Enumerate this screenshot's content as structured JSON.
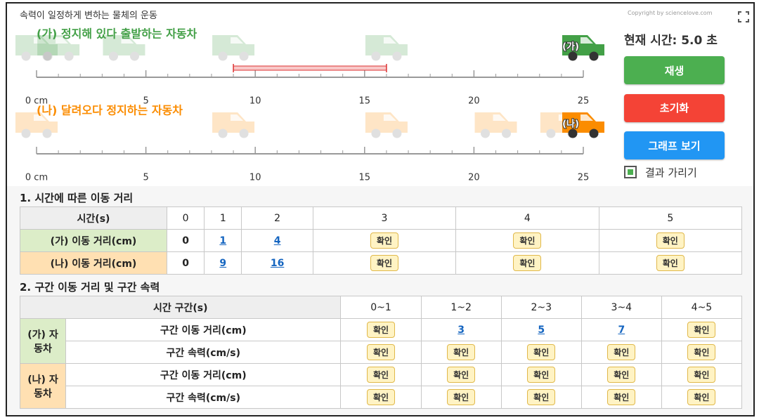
{
  "header": {
    "title": "속력이 일정하게 변하는 물체의 운동",
    "copyright": "Copyright by sciencelove.com"
  },
  "sim": {
    "xlim": [
      0,
      25
    ],
    "ticks": [
      {
        "value": 0,
        "label": "0 cm"
      },
      5,
      10,
      15,
      20,
      25
    ],
    "highlight": [
      9,
      16
    ],
    "track_a": {
      "label": "(가) 정지해 있다 출발하는 자동차",
      "car_label": "(가)",
      "positions": [
        0,
        1,
        4,
        9,
        16,
        25
      ],
      "color": "#43a047"
    },
    "track_b": {
      "label": "(나) 달려오다 정지하는 자동차",
      "car_label": "(나)",
      "positions": [
        0,
        9,
        16,
        21,
        24,
        25
      ],
      "color": "#fb8c00"
    }
  },
  "panel": {
    "status": "현재 시간: 5.0 초",
    "buttons": [
      {
        "label": "재생",
        "color": "#4caf50"
      },
      {
        "label": "초기화",
        "color": "#f44336"
      },
      {
        "label": "그래프 보기",
        "color": "#2196f3"
      }
    ],
    "checkbox": "결과 가리기"
  },
  "table1": {
    "title": "1. 시간에 따른 이동 거리",
    "header": [
      "시간(s)",
      "0",
      "1",
      "2",
      "3",
      "4",
      "5"
    ],
    "rows": [
      [
        "(가) 이동 거리(cm)",
        "0",
        "1",
        "4",
        "확인",
        "확인",
        "확인"
      ],
      [
        "(나) 이동 거리(cm)",
        "0",
        "9",
        "16",
        "확인",
        "확인",
        "확인"
      ]
    ]
  },
  "table2": {
    "title": "2. 구간 이동 거리 및 구간 속력",
    "header": [
      "시간 구간(s)",
      "0~1",
      "1~2",
      "2~3",
      "3~4",
      "4~5"
    ],
    "groups": [
      {
        "name": "(가) 자동차",
        "rows": [
          {
            "label": "구간 이동 거리(cm)",
            "cells": [
              "확인",
              "3",
              "5",
              "7",
              "확인"
            ]
          },
          {
            "label": "구간 속력(cm/s)",
            "cells": [
              "확인",
              "확인",
              "확인",
              "확인",
              "확인"
            ]
          }
        ]
      },
      {
        "name": "(나) 자동차",
        "rows": [
          {
            "label": "구간 이동 거리(cm)",
            "cells": [
              "확인",
              "확인",
              "확인",
              "확인",
              "확인"
            ]
          },
          {
            "label": "구간 속력(cm/s)",
            "cells": [
              "확인",
              "확인",
              "확인",
              "확인",
              "확인"
            ]
          }
        ]
      }
    ]
  }
}
